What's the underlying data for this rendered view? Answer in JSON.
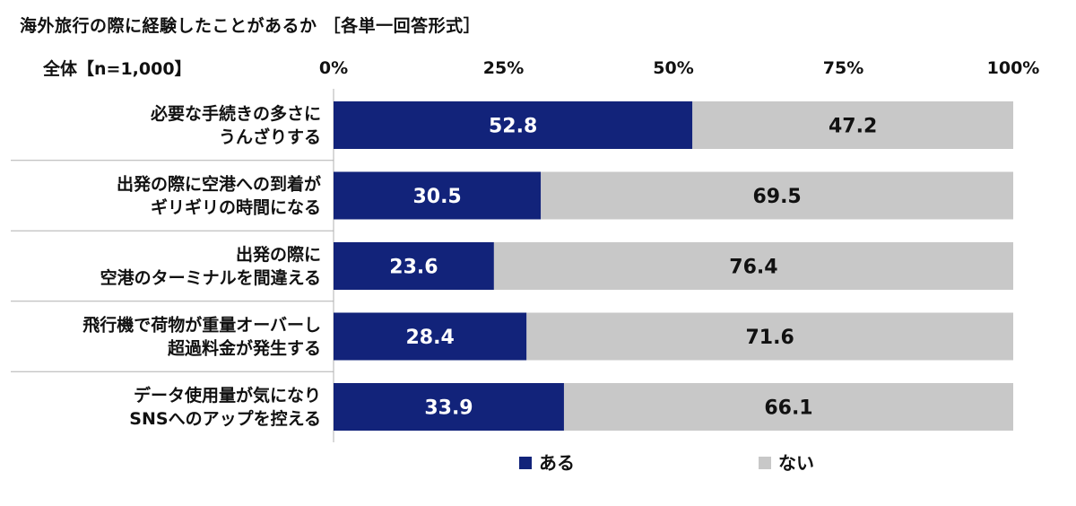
{
  "title": "海外旅行の際に経験したことがあるか ［各単一回答形式］",
  "sample_label": "全体【n=1,000】",
  "colors": {
    "yes": "#12237a",
    "no": "#c8c8c8",
    "axis": "#b0b0b0"
  },
  "chart_data": {
    "type": "bar",
    "orientation": "horizontal",
    "stacked": true,
    "percent": true,
    "xlim": [
      0,
      100
    ],
    "x_ticks": [
      "0%",
      "25%",
      "50%",
      "75%",
      "100%"
    ],
    "categories": [
      [
        "必要な手続きの多さに",
        "うんざりする"
      ],
      [
        "出発の際に空港への到着が",
        "ギリギリの時間になる"
      ],
      [
        "出発の際に",
        "空港のターミナルを間違える"
      ],
      [
        "飛行機で荷物が重量オーバーし",
        "超過料金が発生する"
      ],
      [
        "データ使用量が気になり",
        "SNSへのアップを控える"
      ]
    ],
    "series": [
      {
        "name": "ある",
        "values": [
          52.8,
          30.5,
          23.6,
          28.4,
          33.9
        ]
      },
      {
        "name": "ない",
        "values": [
          47.2,
          69.5,
          76.4,
          71.6,
          66.1
        ]
      }
    ],
    "data_labels": [
      [
        "52.8",
        "30.5",
        "23.6",
        "28.4",
        "33.9"
      ],
      [
        "47.2",
        "69.5",
        "76.4",
        "71.6",
        "66.1"
      ]
    ],
    "legend_position": "bottom-center"
  }
}
